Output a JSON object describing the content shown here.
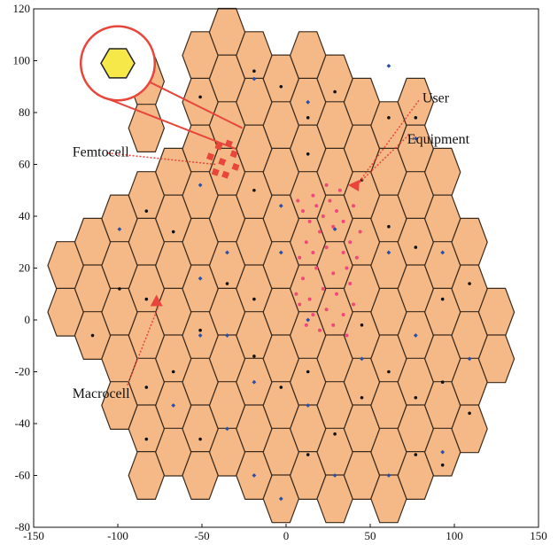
{
  "chart_data": {
    "type": "scatter",
    "title": "",
    "xlabel": "",
    "ylabel": "",
    "xlim": [
      -150,
      150
    ],
    "ylim": [
      -80,
      120
    ],
    "xticks": [
      "-150",
      "-100",
      "-50",
      "0",
      "50",
      "100",
      "150"
    ],
    "yticks": [
      "120",
      "100",
      "80",
      "60",
      "40",
      "20",
      "0",
      "-20",
      "-40",
      "-60",
      "-80"
    ],
    "cell_fill": "#f5b987",
    "cell_stroke": "#3a2a1c",
    "user_color": "#f0487a",
    "macro_base_station_color": "#2b4fa8",
    "annotation_color": "#e8453b",
    "femtocell_icon_fill": "#f7e84a",
    "macrocell_centers": [
      {
        "x": -83,
        "y": 92
      },
      {
        "x": -83,
        "y": 74
      },
      {
        "x": -51,
        "y": 102
      },
      {
        "x": -51,
        "y": 84
      },
      {
        "x": -51,
        "y": 66
      },
      {
        "x": -51,
        "y": 48
      },
      {
        "x": -67,
        "y": 57
      },
      {
        "x": -67,
        "y": 39
      },
      {
        "x": -67,
        "y": 21
      },
      {
        "x": -67,
        "y": 3
      },
      {
        "x": -67,
        "y": -15
      },
      {
        "x": -67,
        "y": -33
      },
      {
        "x": -67,
        "y": -51
      },
      {
        "x": -83,
        "y": 48
      },
      {
        "x": -83,
        "y": 30
      },
      {
        "x": -83,
        "y": 12
      },
      {
        "x": -83,
        "y": -6
      },
      {
        "x": -83,
        "y": -24
      },
      {
        "x": -83,
        "y": -42
      },
      {
        "x": -83,
        "y": -60
      },
      {
        "x": -99,
        "y": 39
      },
      {
        "x": -99,
        "y": 21
      },
      {
        "x": -99,
        "y": 3
      },
      {
        "x": -99,
        "y": -15
      },
      {
        "x": -99,
        "y": -33
      },
      {
        "x": -115,
        "y": 30
      },
      {
        "x": -115,
        "y": 12
      },
      {
        "x": -115,
        "y": -6
      },
      {
        "x": -131,
        "y": 21
      },
      {
        "x": -131,
        "y": 3
      },
      {
        "x": -35,
        "y": 111
      },
      {
        "x": -35,
        "y": 93
      },
      {
        "x": -35,
        "y": 75
      },
      {
        "x": -35,
        "y": 57
      },
      {
        "x": -35,
        "y": 39
      },
      {
        "x": -35,
        "y": 21
      },
      {
        "x": -35,
        "y": 3
      },
      {
        "x": -35,
        "y": -15
      },
      {
        "x": -35,
        "y": -33
      },
      {
        "x": -35,
        "y": -51
      },
      {
        "x": -19,
        "y": 102
      },
      {
        "x": -19,
        "y": 84
      },
      {
        "x": -19,
        "y": 66
      },
      {
        "x": -19,
        "y": 48
      },
      {
        "x": -19,
        "y": 30
      },
      {
        "x": -19,
        "y": 12
      },
      {
        "x": -19,
        "y": -6
      },
      {
        "x": -19,
        "y": -24
      },
      {
        "x": -19,
        "y": -42
      },
      {
        "x": -19,
        "y": -60
      },
      {
        "x": -51,
        "y": 30
      },
      {
        "x": -51,
        "y": 12
      },
      {
        "x": -51,
        "y": -6
      },
      {
        "x": -51,
        "y": -24
      },
      {
        "x": -51,
        "y": -42
      },
      {
        "x": -51,
        "y": -60
      },
      {
        "x": -3,
        "y": 93
      },
      {
        "x": -3,
        "y": 75
      },
      {
        "x": -3,
        "y": 57
      },
      {
        "x": -3,
        "y": 39
      },
      {
        "x": -3,
        "y": 21
      },
      {
        "x": -3,
        "y": 3
      },
      {
        "x": -3,
        "y": -15
      },
      {
        "x": -3,
        "y": -33
      },
      {
        "x": -3,
        "y": -51
      },
      {
        "x": -3,
        "y": -69
      },
      {
        "x": 13,
        "y": 102
      },
      {
        "x": 13,
        "y": 84
      },
      {
        "x": 13,
        "y": 66
      },
      {
        "x": 13,
        "y": 48
      },
      {
        "x": 13,
        "y": 30
      },
      {
        "x": 13,
        "y": 12
      },
      {
        "x": 13,
        "y": -6
      },
      {
        "x": 13,
        "y": -24
      },
      {
        "x": 13,
        "y": -42
      },
      {
        "x": 13,
        "y": -60
      },
      {
        "x": 29,
        "y": 93
      },
      {
        "x": 29,
        "y": 75
      },
      {
        "x": 29,
        "y": 57
      },
      {
        "x": 29,
        "y": 39
      },
      {
        "x": 29,
        "y": 21
      },
      {
        "x": 29,
        "y": 3
      },
      {
        "x": 29,
        "y": -15
      },
      {
        "x": 29,
        "y": -33
      },
      {
        "x": 29,
        "y": -51
      },
      {
        "x": 29,
        "y": -69
      },
      {
        "x": 45,
        "y": 84
      },
      {
        "x": 45,
        "y": 66
      },
      {
        "x": 45,
        "y": 48
      },
      {
        "x": 45,
        "y": 30
      },
      {
        "x": 45,
        "y": 12
      },
      {
        "x": 45,
        "y": -6
      },
      {
        "x": 45,
        "y": -24
      },
      {
        "x": 45,
        "y": -42
      },
      {
        "x": 45,
        "y": -60
      },
      {
        "x": 61,
        "y": 75
      },
      {
        "x": 61,
        "y": 57
      },
      {
        "x": 61,
        "y": 39
      },
      {
        "x": 61,
        "y": 21
      },
      {
        "x": 61,
        "y": 3
      },
      {
        "x": 61,
        "y": -15
      },
      {
        "x": 61,
        "y": -33
      },
      {
        "x": 61,
        "y": -51
      },
      {
        "x": 61,
        "y": -69
      },
      {
        "x": 77,
        "y": 84
      },
      {
        "x": 77,
        "y": 66
      },
      {
        "x": 77,
        "y": 48
      },
      {
        "x": 77,
        "y": 30
      },
      {
        "x": 77,
        "y": 12
      },
      {
        "x": 77,
        "y": -6
      },
      {
        "x": 77,
        "y": -24
      },
      {
        "x": 77,
        "y": -42
      },
      {
        "x": 77,
        "y": -60
      },
      {
        "x": 93,
        "y": 57
      },
      {
        "x": 93,
        "y": 39
      },
      {
        "x": 93,
        "y": 21
      },
      {
        "x": 93,
        "y": 3
      },
      {
        "x": 93,
        "y": -15
      },
      {
        "x": 93,
        "y": -33
      },
      {
        "x": 93,
        "y": -51
      },
      {
        "x": 109,
        "y": 30
      },
      {
        "x": 109,
        "y": 12
      },
      {
        "x": 109,
        "y": -6
      },
      {
        "x": 109,
        "y": -24
      },
      {
        "x": 109,
        "y": -42
      },
      {
        "x": 125,
        "y": 3
      },
      {
        "x": 125,
        "y": -15
      }
    ],
    "base_stations": [
      {
        "x": -19,
        "y": 93
      },
      {
        "x": -99,
        "y": 35
      },
      {
        "x": -51,
        "y": 52
      },
      {
        "x": -35,
        "y": 26
      },
      {
        "x": -51,
        "y": 16
      },
      {
        "x": -3,
        "y": 44
      },
      {
        "x": -3,
        "y": 26
      },
      {
        "x": 29,
        "y": 35
      },
      {
        "x": 13,
        "y": 0
      },
      {
        "x": -35,
        "y": -6
      },
      {
        "x": -19,
        "y": -24
      },
      {
        "x": -35,
        "y": -42
      },
      {
        "x": -19,
        "y": -60
      },
      {
        "x": 29,
        "y": -60
      },
      {
        "x": 61,
        "y": -60
      },
      {
        "x": 93,
        "y": -51
      },
      {
        "x": 45,
        "y": -15
      },
      {
        "x": 77,
        "y": -6
      },
      {
        "x": 109,
        "y": -15
      },
      {
        "x": 61,
        "y": 26
      },
      {
        "x": 93,
        "y": 26
      },
      {
        "x": 77,
        "y": 70
      },
      {
        "x": 61,
        "y": 98
      },
      {
        "x": 13,
        "y": 84
      },
      {
        "x": -3,
        "y": -69
      },
      {
        "x": -51,
        "y": -6
      },
      {
        "x": -67,
        "y": -33
      },
      {
        "x": 13,
        "y": -33
      }
    ],
    "user_equipment": [
      {
        "x": -19,
        "y": 96
      },
      {
        "x": -51,
        "y": 86
      },
      {
        "x": -3,
        "y": 90
      },
      {
        "x": 13,
        "y": 78
      },
      {
        "x": 13,
        "y": 64
      },
      {
        "x": 29,
        "y": 88
      },
      {
        "x": 45,
        "y": 54
      },
      {
        "x": 61,
        "y": 78
      },
      {
        "x": 77,
        "y": 78
      },
      {
        "x": -67,
        "y": 34
      },
      {
        "x": -83,
        "y": 42
      },
      {
        "x": -35,
        "y": 56
      },
      {
        "x": -19,
        "y": 50
      },
      {
        "x": -35,
        "y": 14
      },
      {
        "x": -19,
        "y": 8
      },
      {
        "x": -51,
        "y": -4
      },
      {
        "x": -67,
        "y": -20
      },
      {
        "x": -83,
        "y": -26
      },
      {
        "x": -83,
        "y": -46
      },
      {
        "x": -51,
        "y": -46
      },
      {
        "x": -19,
        "y": -14
      },
      {
        "x": -3,
        "y": -26
      },
      {
        "x": 13,
        "y": -20
      },
      {
        "x": 13,
        "y": -52
      },
      {
        "x": 29,
        "y": -44
      },
      {
        "x": 45,
        "y": -30
      },
      {
        "x": 61,
        "y": -20
      },
      {
        "x": 77,
        "y": -30
      },
      {
        "x": 93,
        "y": -24
      },
      {
        "x": 109,
        "y": -36
      },
      {
        "x": 93,
        "y": -56
      },
      {
        "x": 77,
        "y": -52
      },
      {
        "x": 93,
        "y": 8
      },
      {
        "x": 109,
        "y": 14
      },
      {
        "x": 77,
        "y": 28
      },
      {
        "x": 61,
        "y": 36
      },
      {
        "x": 45,
        "y": -2
      },
      {
        "x": -99,
        "y": 12
      },
      {
        "x": -115,
        "y": -6
      },
      {
        "x": -83,
        "y": 8
      }
    ],
    "hotspot_users": [
      {
        "x": 7,
        "y": 46
      },
      {
        "x": 10,
        "y": 42
      },
      {
        "x": 14,
        "y": 38
      },
      {
        "x": 18,
        "y": 44
      },
      {
        "x": 22,
        "y": 40
      },
      {
        "x": 26,
        "y": 46
      },
      {
        "x": 30,
        "y": 42
      },
      {
        "x": 34,
        "y": 38
      },
      {
        "x": 28,
        "y": 36
      },
      {
        "x": 20,
        "y": 34
      },
      {
        "x": 12,
        "y": 30
      },
      {
        "x": 8,
        "y": 24
      },
      {
        "x": 16,
        "y": 26
      },
      {
        "x": 24,
        "y": 28
      },
      {
        "x": 34,
        "y": 26
      },
      {
        "x": 38,
        "y": 30
      },
      {
        "x": 42,
        "y": 24
      },
      {
        "x": 36,
        "y": 20
      },
      {
        "x": 28,
        "y": 18
      },
      {
        "x": 18,
        "y": 20
      },
      {
        "x": 10,
        "y": 16
      },
      {
        "x": 6,
        "y": 10
      },
      {
        "x": 14,
        "y": 8
      },
      {
        "x": 22,
        "y": 12
      },
      {
        "x": 30,
        "y": 10
      },
      {
        "x": 38,
        "y": 14
      },
      {
        "x": 40,
        "y": 6
      },
      {
        "x": 34,
        "y": 2
      },
      {
        "x": 24,
        "y": 4
      },
      {
        "x": 16,
        "y": 2
      },
      {
        "x": 8,
        "y": 6
      },
      {
        "x": 12,
        "y": -2
      },
      {
        "x": 20,
        "y": -4
      },
      {
        "x": 28,
        "y": -2
      },
      {
        "x": 36,
        "y": -6
      },
      {
        "x": 32,
        "y": 50
      },
      {
        "x": 24,
        "y": 52
      },
      {
        "x": 16,
        "y": 48
      },
      {
        "x": 40,
        "y": 44
      },
      {
        "x": 44,
        "y": 34
      }
    ],
    "femtocells": [
      {
        "x": -40,
        "y": 67
      },
      {
        "x": -34,
        "y": 68
      },
      {
        "x": -31,
        "y": 64
      },
      {
        "x": -38,
        "y": 61
      },
      {
        "x": -42,
        "y": 57
      },
      {
        "x": -36,
        "y": 56
      },
      {
        "x": -30,
        "y": 59
      },
      {
        "x": -45,
        "y": 63
      }
    ],
    "macrocell_marker": {
      "x": -77,
      "y": 7
    },
    "ue_marker": {
      "x": 41,
      "y": 52
    },
    "annotations": [
      {
        "label": "Femtocell",
        "text_x": -127,
        "text_y": 63,
        "target_x": -42,
        "target_y": 60
      },
      {
        "label": "Macrocell",
        "text_x": -127,
        "text_y": -30,
        "target_x": -76,
        "target_y": 5
      },
      {
        "label": "User",
        "text_x": 81,
        "text_y": 84,
        "target_x": 42,
        "target_y": 52
      },
      {
        "label": "Equipment",
        "text_x": 72,
        "text_y": 68,
        "target_x": 42,
        "target_y": 52
      }
    ],
    "zoom_callout": {
      "circle_x": -100,
      "circle_y": 99,
      "circle_r": 22,
      "icon_x": -100,
      "icon_y": 99,
      "icon_r": 10,
      "line_end1_x": -26,
      "line_end1_y": 74,
      "line_end2_x": -30,
      "line_end2_y": 66
    }
  }
}
